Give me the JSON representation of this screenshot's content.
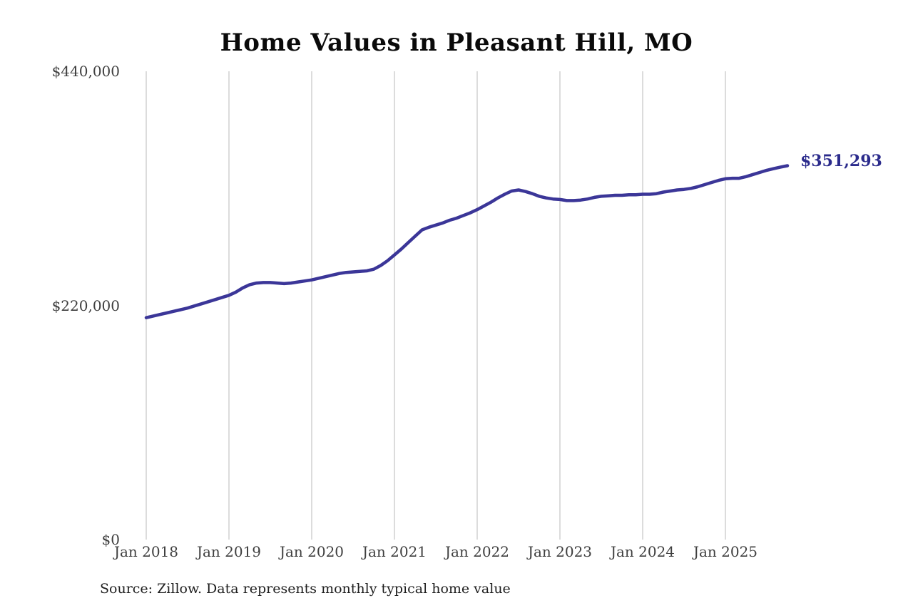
{
  "title": "Home Values in Pleasant Hill, MO",
  "source_note": "Source: Zillow. Data represents monthly typical home value",
  "colors": {
    "line": "#3b3698",
    "final_label": "#2b2b8c",
    "grid": "#c9c9c9",
    "tick_text": "#3f3f3f",
    "title_text": "#0a0a0a"
  },
  "chart_data": {
    "type": "line",
    "title": "Home Values in Pleasant Hill, MO",
    "xlabel": "",
    "ylabel": "",
    "x_unit": "month",
    "x_start": "Jan 2018",
    "x_end": "Oct 2025",
    "x_tick_labels": [
      "Jan 2018",
      "Jan 2019",
      "Jan 2020",
      "Jan 2021",
      "Jan 2022",
      "Jan 2023",
      "Jan 2024",
      "Jan 2025"
    ],
    "y_ticks": [
      {
        "value": 0,
        "label": "$0"
      },
      {
        "value": 220000,
        "label": "$220,000"
      },
      {
        "value": 440000,
        "label": "$440,000"
      }
    ],
    "ylim": [
      0,
      440000
    ],
    "grid": "vertical-only",
    "legend": "none",
    "final_value": 351293,
    "final_value_label": "$351,293",
    "series": [
      {
        "name": "Monthly typical home value",
        "values": [
          208500,
          210000,
          211500,
          213000,
          214500,
          216000,
          217500,
          219500,
          221500,
          223500,
          225500,
          227500,
          229500,
          232500,
          236500,
          239500,
          241000,
          241500,
          241500,
          241000,
          240500,
          241000,
          242000,
          243000,
          244000,
          245500,
          247000,
          248500,
          250000,
          251000,
          251500,
          252000,
          252500,
          254000,
          257500,
          262000,
          267500,
          273000,
          279000,
          285000,
          291000,
          293500,
          295500,
          297500,
          300000,
          302000,
          304500,
          307000,
          310000,
          313500,
          317000,
          321000,
          324500,
          327500,
          328500,
          327000,
          325000,
          322500,
          321000,
          320000,
          319500,
          318500,
          318500,
          319000,
          320000,
          321500,
          322500,
          323000,
          323500,
          323500,
          324000,
          324000,
          324500,
          324500,
          325000,
          326500,
          327500,
          328500,
          329000,
          330000,
          331500,
          333500,
          335500,
          337500,
          339000,
          339500,
          339500,
          341000,
          343000,
          345000,
          347000,
          348500,
          350000,
          351293
        ]
      }
    ]
  }
}
